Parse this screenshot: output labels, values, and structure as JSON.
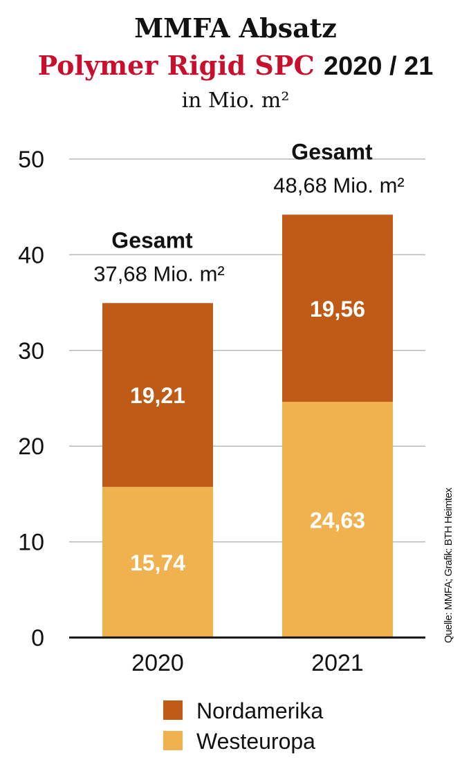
{
  "title_line1": "MMFA Absatz",
  "title_line2_red": "Polymer Rigid SPC",
  "title_line2_black": "2020 / 21",
  "subtitle": "in Mio. m²",
  "source": "Quelle: MMFA; Grafik: BTH Heimtex",
  "chart_data": {
    "type": "bar",
    "stacked": true,
    "categories": [
      "2020",
      "2021"
    ],
    "series": [
      {
        "name": "Westeuropa",
        "values": [
          15.74,
          24.63
        ],
        "color": "#f0b24e",
        "labels": [
          "15,74",
          "24,63"
        ]
      },
      {
        "name": "Nordamerika",
        "values": [
          19.21,
          19.56
        ],
        "color": "#bf5b17",
        "labels": [
          "19,21",
          "19,56"
        ]
      }
    ],
    "totals": [
      {
        "heading": "Gesamt",
        "value": "37,68 Mio. m²"
      },
      {
        "heading": "Gesamt",
        "value": "48,68 Mio. m²"
      }
    ],
    "ylim": [
      0,
      50
    ],
    "yticks": [
      "0",
      "10",
      "20",
      "30",
      "40",
      "50"
    ],
    "grid": true,
    "legend": [
      "Nordamerika",
      "Westeuropa"
    ],
    "legend_position": "bottom"
  }
}
